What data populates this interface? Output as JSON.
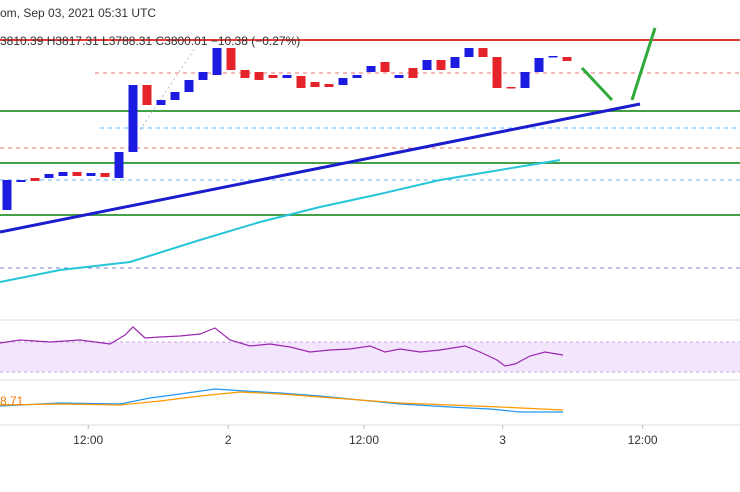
{
  "chart_data": {
    "type": "candlestick",
    "title": "om, Sep 03, 2021 05:31 UTC",
    "subtitle": "3810.39 H3817.31 L3788.31 C3800.01 −10.38 (−0.27%)",
    "annotation": "8.71",
    "x": [
      0,
      1,
      2,
      3,
      4,
      5,
      6,
      7,
      8,
      9,
      10,
      11,
      12,
      13,
      14,
      15,
      16,
      17,
      18,
      19,
      20,
      21,
      22,
      23,
      24,
      25,
      26,
      27,
      28,
      29,
      30,
      31,
      32,
      33,
      34,
      35,
      36,
      37,
      38,
      39,
      40
    ],
    "open": [
      3678,
      3700.4,
      3703.6,
      3703.6,
      3705.2,
      3708.4,
      3705.2,
      3707.6,
      3703.6,
      3724.4,
      3778,
      3762,
      3766,
      3772.4,
      3782,
      3786,
      3807.6,
      3790,
      3788.4,
      3786,
      3783.6,
      3785.2,
      3780.4,
      3778.8,
      3778,
      3783.6,
      3788.4,
      3796.4,
      3783.6,
      3791.6,
      3790,
      3798,
      3791.6,
      3800.4,
      3807.6,
      3800.4,
      3776.4,
      3775.6,
      3788.4,
      3800.4,
      3800.4
    ],
    "close": [
      3702,
      3702,
      3701.2,
      3706.8,
      3708.4,
      3705.2,
      3707.6,
      3704.4,
      3724.4,
      3778,
      3762,
      3766,
      3772.4,
      3782,
      3788.4,
      3807.6,
      3790,
      3783.6,
      3782,
      3783.6,
      3786,
      3775.6,
      3776.4,
      3776.4,
      3783.6,
      3786,
      3793.2,
      3788.4,
      3786,
      3783.6,
      3798,
      3790,
      3800.4,
      3807.6,
      3800.4,
      3775.6,
      3775.6,
      3788.4,
      3799.6,
      3801.2,
      3797.2
    ],
    "colors": {
      "up": "#1c1ce0",
      "down": "#e5232b"
    },
    "xlim": [
      -0.5,
      52.357
    ],
    "ylim": [
      3590,
      3846
    ],
    "xticks": [
      {
        "value": 5.8,
        "label": "12:00"
      },
      {
        "value": 15.8,
        "label": "2"
      },
      {
        "value": 25.5,
        "label": "12:00"
      },
      {
        "value": 35.4,
        "label": "3"
      },
      {
        "value": 45.4,
        "label": "12:00"
      }
    ]
  }
}
